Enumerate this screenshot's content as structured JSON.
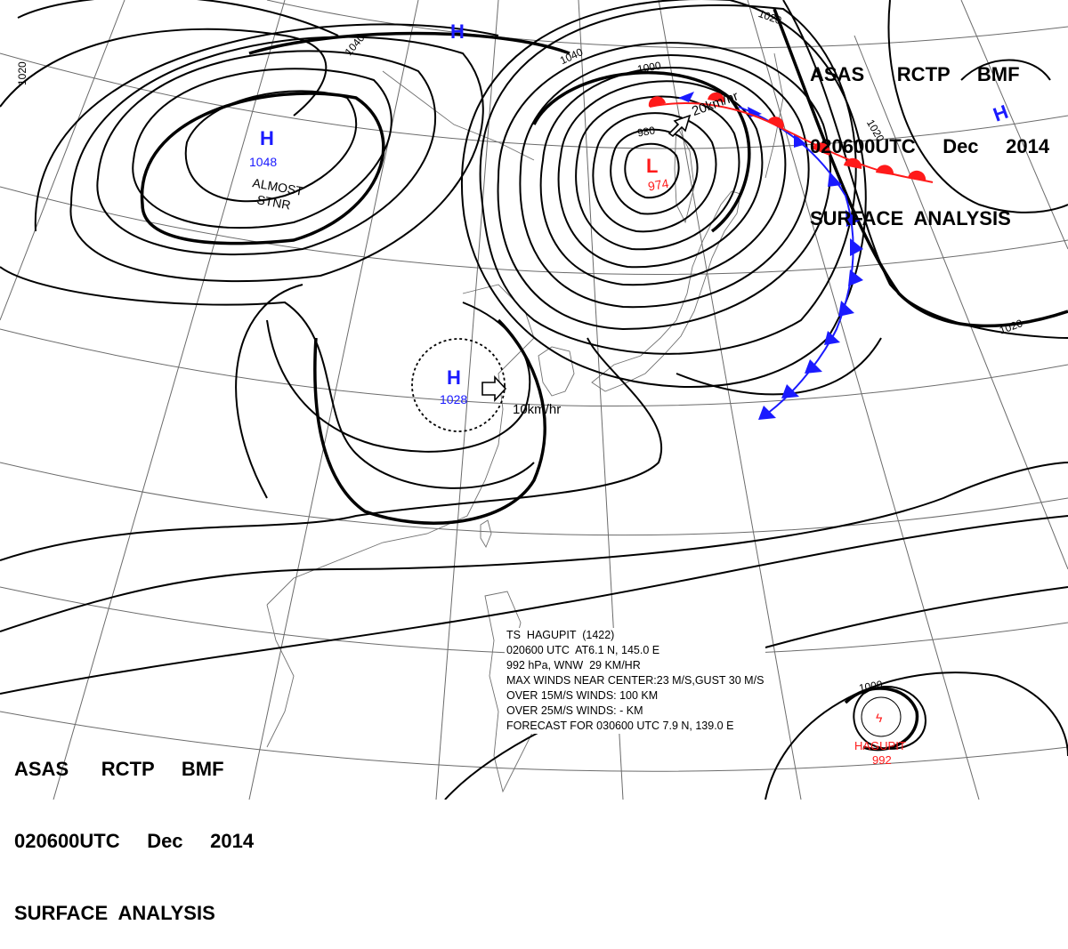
{
  "header_top": {
    "line1": "ASAS      RCTP     BMF",
    "line2": "020600UTC     Dec     2014",
    "line3": "SURFACE  ANALYSIS"
  },
  "header_bottom": {
    "line1": "ASAS      RCTP     BMF",
    "line2": "020600UTC     Dec     2014",
    "line3": "SURFACE  ANALYSIS"
  },
  "pressure_centers": [
    {
      "id": "h-mongolia",
      "type": "H",
      "pressure": "1048",
      "note1": "ALMOST",
      "note2": "STNR"
    },
    {
      "id": "h-north",
      "type": "H"
    },
    {
      "id": "h-northeast",
      "type": "H"
    },
    {
      "id": "h-china",
      "type": "H",
      "pressure": "1028",
      "motion": "10km/hr"
    },
    {
      "id": "l-okhotsk",
      "type": "L",
      "pressure": "974",
      "motion": "20km/hr"
    }
  ],
  "isobar_labels": [
    "1040",
    "1020",
    "1040",
    "1000",
    "1020",
    "980",
    "1020",
    "1020",
    "1000"
  ],
  "typhoon": {
    "name": "HAGUPIT",
    "pressure": "992",
    "lines": [
      "TS  HAGUPIT  (1422)",
      "020600 UTC  AT6.1 N, 145.0 E",
      "992 hPa, WNW  29 KM/HR",
      "MAX WINDS NEAR CENTER:23 M/S,GUST 30 M/S",
      "OVER 15M/S WINDS: 100 KM",
      "OVER 25M/S WINDS: - KM",
      "FORECAST FOR 030600 UTC 7.9 N, 139.0 E"
    ]
  },
  "colors": {
    "high": "#1a1aff",
    "low": "#ff1a1a",
    "cold_front": "#1a1aff",
    "warm_front": "#ff1a1a",
    "isobar": "#000000",
    "grid": "#555555",
    "coast": "#666666"
  }
}
